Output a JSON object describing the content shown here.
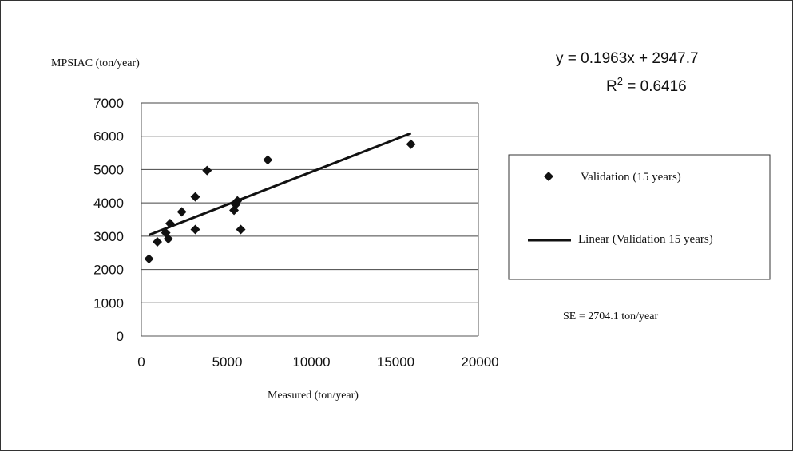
{
  "chart_data": {
    "type": "scatter",
    "ylabel": "MPSIAC (ton/year)",
    "xlabel": "Measured (ton/year)",
    "xlim": [
      0,
      20000
    ],
    "ylim": [
      0,
      7000
    ],
    "xticks": [
      "0",
      "5000",
      "10000",
      "15000",
      "20000"
    ],
    "yticks": [
      "0",
      "1000",
      "2000",
      "3000",
      "4000",
      "5000",
      "6000",
      "7000"
    ],
    "xtick_values": [
      0,
      5000,
      10000,
      15000,
      20000
    ],
    "ytick_values": [
      0,
      1000,
      2000,
      3000,
      4000,
      5000,
      6000,
      7000
    ],
    "grid": "horizontal",
    "series": [
      {
        "name": "Validation (15 years)",
        "marker": "diamond",
        "color": "#111111",
        "points": [
          {
            "x": 450,
            "y": 2320
          },
          {
            "x": 950,
            "y": 2830
          },
          {
            "x": 1450,
            "y": 3100
          },
          {
            "x": 1600,
            "y": 2920
          },
          {
            "x": 1700,
            "y": 3380
          },
          {
            "x": 2400,
            "y": 3730
          },
          {
            "x": 3200,
            "y": 3200
          },
          {
            "x": 3200,
            "y": 4180
          },
          {
            "x": 3900,
            "y": 4970
          },
          {
            "x": 5500,
            "y": 3780
          },
          {
            "x": 5600,
            "y": 3950
          },
          {
            "x": 5700,
            "y": 4060
          },
          {
            "x": 5900,
            "y": 3200
          },
          {
            "x": 7500,
            "y": 5290
          },
          {
            "x": 16000,
            "y": 5760
          }
        ]
      },
      {
        "name": "Linear (Validation 15 years)",
        "kind": "trendline",
        "slope": 0.1963,
        "intercept": 2947.7,
        "x_range": [
          450,
          16000
        ],
        "color": "#111111"
      }
    ],
    "equation_text": "y = 0.1963x + 2947.7",
    "r2_label": "R",
    "r2_sup": "2",
    "r2_value": " = 0.6416",
    "legend_placement": "right",
    "annotation": "SE = 2704.1 ton/year"
  }
}
